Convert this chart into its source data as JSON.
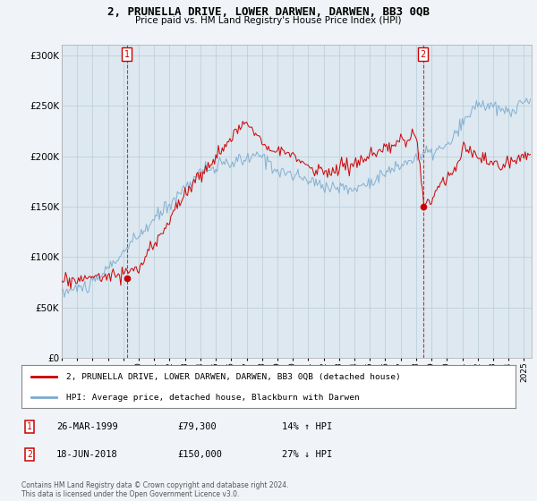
{
  "title": "2, PRUNELLA DRIVE, LOWER DARWEN, DARWEN, BB3 0QB",
  "subtitle": "Price paid vs. HM Land Registry's House Price Index (HPI)",
  "ylim": [
    0,
    310000
  ],
  "yticks": [
    0,
    50000,
    100000,
    150000,
    200000,
    250000,
    300000
  ],
  "ytick_labels": [
    "£0",
    "£50K",
    "£100K",
    "£150K",
    "£200K",
    "£250K",
    "£300K"
  ],
  "background_color": "#f0f4f8",
  "plot_bg_color": "#dde8f0",
  "grid_color": "#b8ccd8",
  "red_color": "#cc0000",
  "blue_color": "#7aaacf",
  "legend_label_red": "2, PRUNELLA DRIVE, LOWER DARWEN, DARWEN, BB3 0QB (detached house)",
  "legend_label_blue": "HPI: Average price, detached house, Blackburn with Darwen",
  "transaction1_date": "26-MAR-1999",
  "transaction1_price": "£79,300",
  "transaction1_hpi": "14% ↑ HPI",
  "transaction1_year": 1999.23,
  "transaction1_value": 79300,
  "transaction2_date": "18-JUN-2018",
  "transaction2_price": "£150,000",
  "transaction2_hpi": "27% ↓ HPI",
  "transaction2_year": 2018.46,
  "transaction2_value": 150000,
  "footnote": "Contains HM Land Registry data © Crown copyright and database right 2024.\nThis data is licensed under the Open Government Licence v3.0."
}
